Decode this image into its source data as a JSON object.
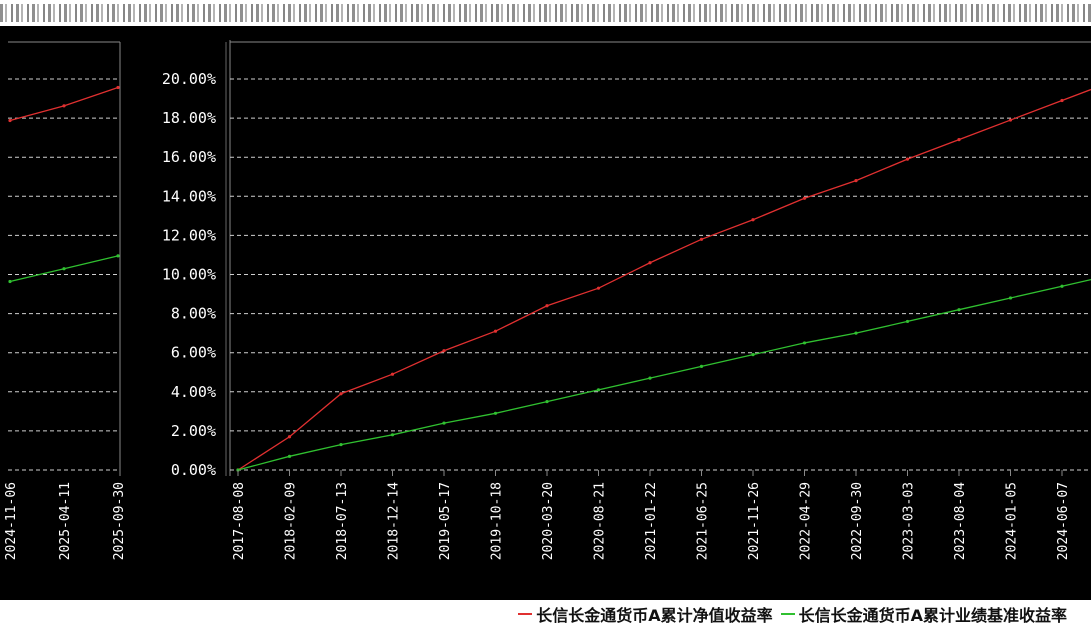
{
  "header": {
    "title": ""
  },
  "chart_data": [
    {
      "type": "line",
      "panel": "left-partial",
      "x": [
        "2024-11-06",
        "2025-04-11",
        "2025-09-30"
      ],
      "series": [
        {
          "name": "长信长金通货币A累计净值收益率",
          "color": "#e03030",
          "values": [
            19.1,
            19.9,
            20.9
          ]
        },
        {
          "name": "长信长金通货币A累计业绩基准收益率",
          "color": "#30c030",
          "values": [
            10.3,
            11.0,
            11.7
          ]
        }
      ],
      "ylim": [
        0,
        22
      ],
      "grid": true
    },
    {
      "type": "line",
      "panel": "main",
      "x": [
        "2017-08-08",
        "2018-02-09",
        "2018-07-13",
        "2018-12-14",
        "2019-05-17",
        "2019-10-18",
        "2020-03-20",
        "2020-08-21",
        "2021-01-22",
        "2021-06-25",
        "2021-11-26",
        "2022-04-29",
        "2022-09-30",
        "2023-03-03",
        "2023-08-04",
        "2024-01-05",
        "2024-06-07"
      ],
      "series": [
        {
          "name": "长信长金通货币A累计净值收益率",
          "color": "#e03030",
          "values": [
            0.0,
            1.7,
            3.9,
            4.9,
            6.1,
            7.1,
            8.4,
            9.3,
            10.6,
            11.8,
            12.8,
            13.9,
            14.8,
            15.9,
            16.9,
            17.9,
            18.9
          ]
        },
        {
          "name": "长信长金通货币A累计业绩基准收益率",
          "color": "#30c030",
          "values": [
            0.0,
            0.7,
            1.3,
            1.8,
            2.4,
            2.9,
            3.5,
            4.1,
            4.7,
            5.3,
            5.9,
            6.5,
            7.0,
            7.6,
            8.2,
            8.8,
            9.4
          ]
        }
      ],
      "y_ticks": [
        "0.00%",
        "2.00%",
        "4.00%",
        "6.00%",
        "8.00%",
        "10.00%",
        "12.00%",
        "14.00%",
        "16.00%",
        "18.00%",
        "20.00%"
      ],
      "ylim": [
        0,
        21
      ],
      "grid": true
    }
  ],
  "legend": {
    "items": [
      {
        "label": "长信长金通货币A累计净值收益率",
        "color": "#e03030"
      },
      {
        "label": "长信长金通货币A累计业绩基准收益率",
        "color": "#30c030"
      }
    ]
  }
}
